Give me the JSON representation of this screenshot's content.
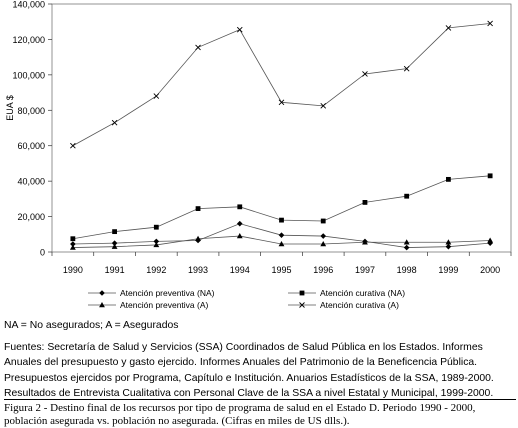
{
  "chart_data": {
    "type": "line",
    "title": "",
    "xlabel": "",
    "ylabel": "EUA $",
    "ylim": [
      0,
      140000
    ],
    "yticks": [
      "0",
      "20,000",
      "40,000",
      "60,000",
      "80,000",
      "100,000",
      "120,000",
      "140,000"
    ],
    "x": [
      "1990",
      "1991",
      "1992",
      "1993",
      "1994",
      "1995",
      "1996",
      "1997",
      "1998",
      "1999",
      "2000"
    ],
    "grid": false,
    "legend_position": "bottom",
    "series": [
      {
        "name": "Atención preventiva (NA)",
        "marker": "diamond",
        "values": [
          4500,
          5000,
          6000,
          6500,
          16000,
          9500,
          9000,
          6000,
          2500,
          3000,
          5000
        ]
      },
      {
        "name": "Atención curativa (NA)",
        "marker": "square",
        "values": [
          7500,
          11500,
          14000,
          24500,
          25500,
          18000,
          17500,
          28000,
          31500,
          41000,
          43000
        ]
      },
      {
        "name": "Atención preventiva (A)",
        "marker": "triangle",
        "values": [
          2500,
          3000,
          4000,
          7500,
          9000,
          4500,
          4500,
          5500,
          5500,
          5500,
          6500
        ]
      },
      {
        "name": "Atención curativa (A)",
        "marker": "x",
        "values": [
          60000,
          73000,
          88000,
          115500,
          125500,
          84500,
          82500,
          100500,
          103500,
          126500,
          129000
        ]
      }
    ]
  },
  "notes": {
    "abbreviations": "NA = No asegurados; A = Asegurados",
    "sources": "Fuentes: Secretaría de Salud y Servicios (SSA) Coordinados de Salud Pública en los Estados.  Informes Anuales del presupuesto y gasto ejercido.  Informes Anuales del Patrimonio de la Beneficencia Pública.  Presupuestos ejercidos por Programa, Capítulo e Institución.  Anuarios Estadísticos de la SSA, 1989-2000. Resultados de Entrevista Cualitativa con Personal Clave de la SSA a nivel Estatal y Municipal, 1999-2000."
  },
  "caption": "Figura 2 - Destino final de los recursos por tipo de programa de salud en el Estado D. Periodo 1990 - 2000, población asegurada vs. población no asegurada. (Cifras en miles de US dlls.)."
}
